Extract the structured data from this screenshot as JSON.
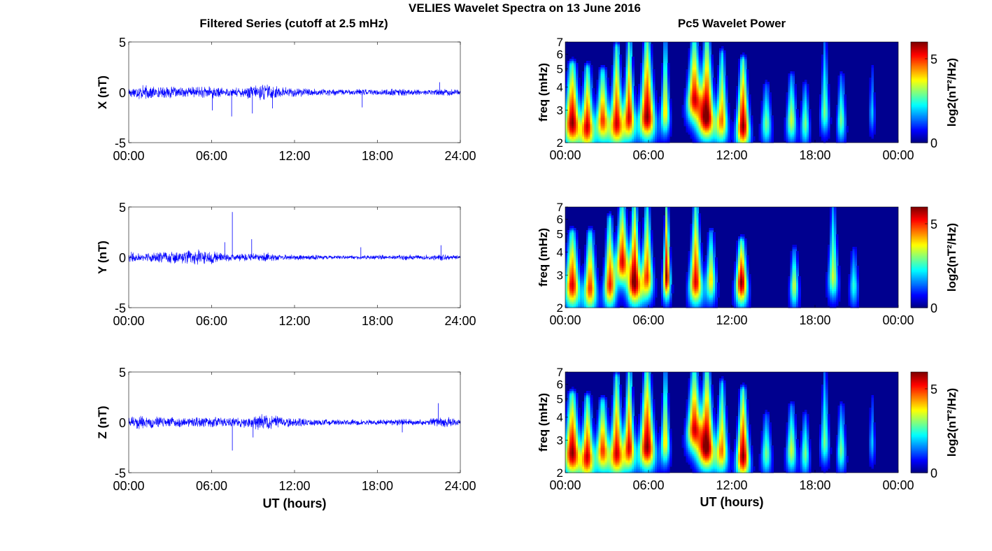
{
  "title": "VELIES Wavelet Spectra on 13 June 2016",
  "left_column_title": "Filtered Series (cutoff at 2.5 mHz)",
  "right_column_title": "Pc5 Wavelet Power",
  "colors": {
    "trace": "#0000ff",
    "spectrogram_background": "#00008f",
    "axis": "#000000",
    "colormap": "jet"
  },
  "chart_data": [
    {
      "type": "line",
      "id": "x-series",
      "ylabel": "X (nT)",
      "xlabel": "",
      "xlim": [
        0,
        24
      ],
      "ylim": [
        -5,
        5
      ],
      "xticks": [
        "00:00",
        "06:00",
        "12:00",
        "18:00",
        "24:00"
      ],
      "yticks": [
        "-5",
        "0",
        "5"
      ],
      "series": [
        {
          "envelope": {
            "hours": [
              0,
              1,
              2,
              3,
              4,
              5,
              6,
              7,
              8,
              9,
              10,
              11,
              12,
              13,
              14,
              15,
              16,
              17,
              18,
              19,
              20,
              21,
              22,
              23,
              24
            ],
            "amplitude_nT": [
              0.6,
              0.8,
              0.6,
              0.6,
              0.5,
              0.6,
              0.7,
              0.4,
              0.5,
              0.8,
              0.9,
              0.6,
              0.5,
              0.4,
              0.35,
              0.35,
              0.3,
              0.35,
              0.3,
              0.4,
              0.35,
              0.3,
              0.3,
              0.45,
              0.25
            ]
          },
          "spikes": [
            {
              "hour": 6.05,
              "value": -1.8
            },
            {
              "hour": 7.45,
              "value": -2.4
            },
            {
              "hour": 8.95,
              "value": -2.1
            },
            {
              "hour": 10.4,
              "value": -1.6
            },
            {
              "hour": 16.9,
              "value": -1.5
            },
            {
              "hour": 22.5,
              "value": 1.0
            }
          ]
        }
      ]
    },
    {
      "type": "line",
      "id": "y-series",
      "ylabel": "Y (nT)",
      "xlabel": "",
      "xlim": [
        0,
        24
      ],
      "ylim": [
        -5,
        5
      ],
      "xticks": [
        "00:00",
        "06:00",
        "12:00",
        "18:00",
        "24:00"
      ],
      "yticks": [
        "-5",
        "0",
        "5"
      ],
      "series": [
        {
          "envelope": {
            "hours": [
              0,
              1,
              2,
              3,
              4,
              5,
              6,
              7,
              8,
              9,
              10,
              11,
              12,
              13,
              14,
              15,
              16,
              17,
              18,
              19,
              20,
              21,
              22,
              23,
              24
            ],
            "amplitude_nT": [
              0.6,
              0.5,
              0.5,
              0.6,
              0.7,
              0.8,
              0.7,
              0.4,
              0.4,
              0.4,
              0.5,
              0.3,
              0.3,
              0.3,
              0.25,
              0.2,
              0.2,
              0.2,
              0.25,
              0.2,
              0.3,
              0.25,
              0.3,
              0.4,
              0.2
            ]
          },
          "spikes": [
            {
              "hour": 6.95,
              "value": 1.5
            },
            {
              "hour": 7.5,
              "value": 4.5
            },
            {
              "hour": 8.9,
              "value": 1.8
            },
            {
              "hour": 16.8,
              "value": 1.0
            },
            {
              "hour": 22.6,
              "value": 1.2
            }
          ]
        }
      ]
    },
    {
      "type": "line",
      "id": "z-series",
      "ylabel": "Z (nT)",
      "xlabel": "UT (hours)",
      "xlim": [
        0,
        24
      ],
      "ylim": [
        -5,
        5
      ],
      "xticks": [
        "00:00",
        "06:00",
        "12:00",
        "18:00",
        "24:00"
      ],
      "yticks": [
        "-5",
        "0",
        "5"
      ],
      "series": [
        {
          "envelope": {
            "hours": [
              0,
              1,
              2,
              3,
              4,
              5,
              6,
              7,
              8,
              9,
              10,
              11,
              12,
              13,
              14,
              15,
              16,
              17,
              18,
              19,
              20,
              21,
              22,
              23,
              24
            ],
            "amplitude_nT": [
              0.6,
              0.7,
              0.6,
              0.55,
              0.5,
              0.55,
              0.6,
              0.45,
              0.5,
              0.7,
              0.9,
              0.6,
              0.5,
              0.4,
              0.35,
              0.3,
              0.3,
              0.3,
              0.3,
              0.35,
              0.35,
              0.3,
              0.4,
              0.6,
              0.25
            ]
          },
          "spikes": [
            {
              "hour": 7.5,
              "value": -2.8
            },
            {
              "hour": 9.0,
              "value": -1.5
            },
            {
              "hour": 19.8,
              "value": -1.0
            },
            {
              "hour": 22.4,
              "value": 1.9
            }
          ]
        }
      ]
    },
    {
      "type": "heatmap",
      "id": "x-wavelet",
      "ylabel": "freq (mHz)",
      "xlabel": "",
      "xlim": [
        0,
        24
      ],
      "ylim": [
        2,
        7
      ],
      "yscale": "log",
      "xticks": [
        "00:00",
        "06:00",
        "12:00",
        "18:00",
        "00:00"
      ],
      "yticks": [
        "2",
        "3",
        "4",
        "5",
        "6",
        "7"
      ],
      "colorbar": {
        "label": "log2(nT²/Hz)",
        "ticks": [
          "0",
          "5"
        ],
        "range": [
          0,
          6
        ]
      },
      "blobs": [
        {
          "t": 0.5,
          "f": 2.6,
          "power": 6,
          "width_h": 0.55,
          "fmax": 5.2
        },
        {
          "t": 1.6,
          "f": 2.5,
          "power": 5.5,
          "width_h": 0.45,
          "fmax": 5.0
        },
        {
          "t": 2.7,
          "f": 2.7,
          "power": 5,
          "width_h": 0.45,
          "fmax": 4.8
        },
        {
          "t": 3.7,
          "f": 2.6,
          "power": 5.5,
          "width_h": 0.45,
          "fmax": 6.5
        },
        {
          "t": 4.6,
          "f": 2.8,
          "power": 5.5,
          "width_h": 0.4,
          "fmax": 7
        },
        {
          "t": 5.9,
          "f": 2.8,
          "power": 6,
          "width_h": 0.55,
          "fmax": 7
        },
        {
          "t": 7.2,
          "f": 3.0,
          "power": 4,
          "width_h": 0.3,
          "fmax": 7
        },
        {
          "t": 9.3,
          "f": 3.5,
          "power": 5.5,
          "width_h": 0.5,
          "fmax": 7
        },
        {
          "t": 10.2,
          "f": 2.8,
          "power": 6,
          "width_h": 0.55,
          "fmax": 7
        },
        {
          "t": 11.3,
          "f": 2.7,
          "power": 4.5,
          "width_h": 0.4,
          "fmax": 6
        },
        {
          "t": 12.8,
          "f": 2.5,
          "power": 6,
          "width_h": 0.45,
          "fmax": 5.5
        },
        {
          "t": 14.5,
          "f": 2.6,
          "power": 3,
          "width_h": 0.35,
          "fmax": 4
        },
        {
          "t": 16.3,
          "f": 2.7,
          "power": 3.5,
          "width_h": 0.35,
          "fmax": 4.5
        },
        {
          "t": 17.3,
          "f": 2.6,
          "power": 3,
          "width_h": 0.3,
          "fmax": 4
        },
        {
          "t": 18.7,
          "f": 3.0,
          "power": 3,
          "width_h": 0.3,
          "fmax": 7
        },
        {
          "t": 19.9,
          "f": 2.7,
          "power": 3,
          "width_h": 0.3,
          "fmax": 4.5
        },
        {
          "t": 22.1,
          "f": 3.0,
          "power": 2,
          "width_h": 0.2,
          "fmax": 5
        }
      ]
    },
    {
      "type": "heatmap",
      "id": "y-wavelet",
      "ylabel": "freq (mHz)",
      "xlabel": "",
      "xlim": [
        0,
        24
      ],
      "ylim": [
        2,
        7
      ],
      "yscale": "log",
      "xticks": [
        "00:00",
        "06:00",
        "12:00",
        "18:00",
        "00:00"
      ],
      "yticks": [
        "2",
        "3",
        "4",
        "5",
        "6",
        "7"
      ],
      "colorbar": {
        "label": "log2(nT²/Hz)",
        "ticks": [
          "0",
          "5"
        ],
        "range": [
          0,
          6
        ]
      },
      "blobs": [
        {
          "t": 0.5,
          "f": 2.7,
          "power": 5.5,
          "width_h": 0.5,
          "fmax": 5
        },
        {
          "t": 1.8,
          "f": 2.6,
          "power": 5,
          "width_h": 0.45,
          "fmax": 5
        },
        {
          "t": 3.2,
          "f": 2.7,
          "power": 5,
          "width_h": 0.4,
          "fmax": 6
        },
        {
          "t": 4.1,
          "f": 3.6,
          "power": 5.5,
          "width_h": 0.45,
          "fmax": 7
        },
        {
          "t": 5.0,
          "f": 2.8,
          "power": 6,
          "width_h": 0.45,
          "fmax": 7
        },
        {
          "t": 5.9,
          "f": 3.0,
          "power": 5,
          "width_h": 0.4,
          "fmax": 7
        },
        {
          "t": 7.3,
          "f": 3.0,
          "power": 6,
          "width_h": 0.25,
          "fmax": 7
        },
        {
          "t": 9.4,
          "f": 2.8,
          "power": 5.5,
          "width_h": 0.45,
          "fmax": 7
        },
        {
          "t": 10.5,
          "f": 2.9,
          "power": 4,
          "width_h": 0.35,
          "fmax": 5
        },
        {
          "t": 12.7,
          "f": 2.8,
          "power": 6,
          "width_h": 0.4,
          "fmax": 4.5
        },
        {
          "t": 16.5,
          "f": 2.7,
          "power": 3.5,
          "width_h": 0.3,
          "fmax": 4
        },
        {
          "t": 19.3,
          "f": 3.0,
          "power": 3.5,
          "width_h": 0.35,
          "fmax": 7
        },
        {
          "t": 20.8,
          "f": 2.7,
          "power": 2.5,
          "width_h": 0.3,
          "fmax": 4
        }
      ]
    },
    {
      "type": "heatmap",
      "id": "z-wavelet",
      "ylabel": "freq (mHz)",
      "xlabel": "UT (hours)",
      "xlim": [
        0,
        24
      ],
      "ylim": [
        2,
        7
      ],
      "yscale": "log",
      "xticks": [
        "00:00",
        "06:00",
        "12:00",
        "18:00",
        "00:00"
      ],
      "yticks": [
        "2",
        "3",
        "4",
        "5",
        "6",
        "7"
      ],
      "colorbar": {
        "label": "log2(nT²/Hz)",
        "ticks": [
          "0",
          "5"
        ],
        "range": [
          0,
          6
        ]
      },
      "blobs": [
        {
          "t": 0.5,
          "f": 2.6,
          "power": 6,
          "width_h": 0.55,
          "fmax": 5.2
        },
        {
          "t": 1.6,
          "f": 2.5,
          "power": 5.5,
          "width_h": 0.45,
          "fmax": 5.0
        },
        {
          "t": 2.7,
          "f": 2.7,
          "power": 5,
          "width_h": 0.45,
          "fmax": 4.8
        },
        {
          "t": 3.7,
          "f": 2.6,
          "power": 5.5,
          "width_h": 0.45,
          "fmax": 6.5
        },
        {
          "t": 4.6,
          "f": 2.8,
          "power": 5.5,
          "width_h": 0.4,
          "fmax": 7
        },
        {
          "t": 5.9,
          "f": 2.8,
          "power": 6,
          "width_h": 0.55,
          "fmax": 7
        },
        {
          "t": 7.2,
          "f": 3.0,
          "power": 4,
          "width_h": 0.3,
          "fmax": 7
        },
        {
          "t": 9.3,
          "f": 3.5,
          "power": 5.5,
          "width_h": 0.5,
          "fmax": 7
        },
        {
          "t": 10.2,
          "f": 2.8,
          "power": 6,
          "width_h": 0.55,
          "fmax": 7
        },
        {
          "t": 11.3,
          "f": 2.7,
          "power": 4.5,
          "width_h": 0.4,
          "fmax": 6
        },
        {
          "t": 12.8,
          "f": 2.5,
          "power": 6,
          "width_h": 0.45,
          "fmax": 5.5
        },
        {
          "t": 14.5,
          "f": 2.6,
          "power": 3,
          "width_h": 0.35,
          "fmax": 4
        },
        {
          "t": 16.3,
          "f": 2.7,
          "power": 3.5,
          "width_h": 0.35,
          "fmax": 4.5
        },
        {
          "t": 17.3,
          "f": 2.6,
          "power": 3,
          "width_h": 0.3,
          "fmax": 4
        },
        {
          "t": 18.7,
          "f": 3.0,
          "power": 3,
          "width_h": 0.3,
          "fmax": 7
        },
        {
          "t": 19.9,
          "f": 2.7,
          "power": 3,
          "width_h": 0.3,
          "fmax": 4.5
        },
        {
          "t": 22.1,
          "f": 3.0,
          "power": 2,
          "width_h": 0.2,
          "fmax": 5
        }
      ]
    }
  ]
}
